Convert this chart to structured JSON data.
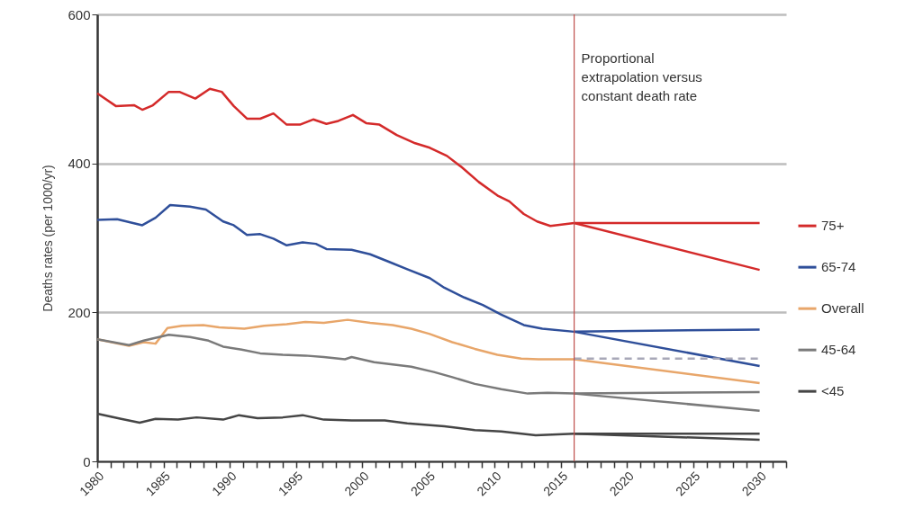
{
  "chart_data": {
    "type": "line",
    "ylabel": "Deaths rates (per 1000/yr)",
    "xlim": [
      1980,
      2032
    ],
    "ylim": [
      0,
      600
    ],
    "yticks": [
      0,
      200,
      400,
      600
    ],
    "xticks": [
      1980,
      {
        "value": 1981,
        "label": null
      },
      {
        "value": 1982,
        "label": null
      },
      {
        "value": 1983,
        "label": null
      },
      {
        "value": 1984,
        "label": null
      },
      1985,
      {
        "value": 1986,
        "label": null
      },
      {
        "value": 1987,
        "label": null
      },
      {
        "value": 1988,
        "label": null
      },
      {
        "value": 1989,
        "label": null
      },
      1990,
      {
        "value": 1991,
        "label": null
      },
      {
        "value": 1992,
        "label": null
      },
      {
        "value": 1993,
        "label": null
      },
      {
        "value": 1994,
        "label": null
      },
      1995,
      {
        "value": 1996,
        "label": null
      },
      {
        "value": 1997,
        "label": null
      },
      {
        "value": 1998,
        "label": null
      },
      {
        "value": 1999,
        "label": null
      },
      2000,
      {
        "value": 2001,
        "label": null
      },
      {
        "value": 2002,
        "label": null
      },
      {
        "value": 2003,
        "label": null
      },
      {
        "value": 2004,
        "label": null
      },
      2005,
      {
        "value": 2006,
        "label": null
      },
      {
        "value": 2007,
        "label": null
      },
      {
        "value": 2008,
        "label": null
      },
      {
        "value": 2009,
        "label": null
      },
      2010,
      {
        "value": 2011,
        "label": null
      },
      {
        "value": 2012,
        "label": null
      },
      {
        "value": 2013,
        "label": null
      },
      {
        "value": 2014,
        "label": null
      },
      2015,
      {
        "value": 2016,
        "label": null
      },
      {
        "value": 2017,
        "label": null
      },
      {
        "value": 2018,
        "label": null
      },
      {
        "value": 2019,
        "label": null
      },
      2020,
      {
        "value": 2021,
        "label": null
      },
      {
        "value": 2022,
        "label": null
      },
      {
        "value": 2023,
        "label": null
      },
      {
        "value": 2024,
        "label": null
      },
      2025,
      {
        "value": 2026,
        "label": null
      },
      {
        "value": 2027,
        "label": null
      },
      {
        "value": 2028,
        "label": null
      },
      {
        "value": 2029,
        "label": null
      },
      2030,
      {
        "value": 2031,
        "label": null
      },
      {
        "value": 2032,
        "label": null
      }
    ],
    "grid": "y",
    "legend": "right",
    "ref_lines": [
      {
        "axis": "x",
        "value": 2016,
        "color": "#c0504d"
      }
    ],
    "annotations": [
      "Proportional extrapolation versus constant death rate"
    ],
    "series": [
      {
        "name": "75+",
        "color": "#d42a2a",
        "x": [
          1980,
          1981.4,
          1982.8,
          1983.4,
          1984.2,
          1985.4,
          1986.2,
          1987.4,
          1988.5,
          1989.4,
          1990.3,
          1991.3,
          1992.3,
          1993.3,
          1994.3,
          1995.3,
          1996.3,
          1997.3,
          1998.2,
          1999.3,
          2000.3,
          2001.3,
          2002.6,
          2004,
          2005.1,
          2006.4,
          2007.5,
          2008.8,
          2010.2,
          2011.1,
          2012.2,
          2013.2,
          2014.2,
          2016,
          2030
        ],
        "values": [
          494,
          477,
          478,
          472,
          478,
          496,
          496,
          487,
          500,
          496,
          477,
          460,
          460,
          467,
          452,
          452,
          459,
          453,
          457,
          465,
          454,
          452,
          438,
          427,
          421,
          410,
          395,
          375,
          357,
          349,
          332,
          322,
          316,
          320,
          320
        ]
      },
      {
        "name": "65-74",
        "color": "#2f4f9a",
        "x": [
          1980,
          1981.5,
          1983.4,
          1984.4,
          1985.5,
          1987,
          1988.2,
          1989.5,
          1990.3,
          1991.3,
          1992.3,
          1993.3,
          1994.3,
          1995.5,
          1996.5,
          1997.3,
          1999.2,
          2000.6,
          2002,
          2003.4,
          2005.1,
          2006.2,
          2007.7,
          2009.1,
          2010.5,
          2012.2,
          2013.6,
          2016,
          2030
        ],
        "values": [
          324,
          325,
          317,
          327,
          344,
          342,
          338,
          322,
          317,
          304,
          305,
          299,
          290,
          294,
          292,
          285,
          284,
          278,
          268,
          258,
          246,
          233,
          220,
          210,
          197,
          183,
          178,
          174,
          177
        ]
      },
      {
        "name": "Overall",
        "color": "#e8a66a",
        "x": [
          1980,
          1982.4,
          1983.5,
          1984.4,
          1985.3,
          1986.4,
          1988,
          1989.2,
          1991.1,
          1992.6,
          1994.3,
          1995.7,
          1997.1,
          1998.9,
          2000.6,
          2002.3,
          2003.7,
          2005.1,
          2006.8,
          2008.5,
          2010.2,
          2012,
          2013.3,
          2016,
          2030
        ],
        "values": [
          164,
          155,
          160,
          158,
          179,
          182,
          183,
          180,
          178,
          182,
          184,
          187,
          186,
          190,
          186,
          183,
          178,
          171,
          160,
          151,
          143,
          138,
          137,
          137,
          105
        ]
      },
      {
        "name": "45-64",
        "color": "#7a7a7a",
        "x": [
          1980,
          1982.4,
          1983.5,
          1985.4,
          1987,
          1988.4,
          1989.5,
          1990.9,
          1992.3,
          1994,
          1995.7,
          1997.1,
          1998.7,
          1999.2,
          2000.9,
          2002.3,
          2003.7,
          2005.4,
          2006.8,
          2008.5,
          2010.5,
          2012.5,
          2014,
          2016,
          2030
        ],
        "values": [
          164,
          156,
          162,
          170,
          167,
          162,
          154,
          150,
          145,
          143,
          142,
          140,
          137,
          140,
          133,
          130,
          127,
          120,
          113,
          104,
          97,
          91,
          92,
          91,
          93
        ]
      },
      {
        "name": "<45",
        "color": "#454545",
        "x": [
          1980,
          1981.8,
          1983.2,
          1984.4,
          1986.1,
          1987.5,
          1989.5,
          1990.7,
          1992.1,
          1994,
          1995.5,
          1997.1,
          1999.2,
          2001.7,
          2003.4,
          2006.2,
          2008.5,
          2010.5,
          2013.1,
          2016,
          2030
        ],
        "values": [
          64,
          57,
          52,
          57,
          56,
          59,
          56,
          62,
          58,
          59,
          62,
          56,
          55,
          55,
          51,
          47,
          42,
          40,
          35,
          37,
          37
        ]
      },
      {
        "color": "#d42a2a",
        "x": [
          2016,
          2030
        ],
        "values": [
          320,
          257
        ]
      },
      {
        "color": "#2f4f9a",
        "x": [
          2016,
          2030
        ],
        "values": [
          174,
          128
        ]
      },
      {
        "color": "#a8a8b8",
        "line_style": "dashed",
        "x": [
          2016,
          2030
        ],
        "values": [
          138,
          138
        ]
      },
      {
        "color": "#7a7a7a",
        "x": [
          2016,
          2030
        ],
        "values": [
          91,
          68
        ]
      },
      {
        "color": "#454545",
        "x": [
          2016,
          2030
        ],
        "values": [
          37,
          29
        ]
      }
    ]
  }
}
